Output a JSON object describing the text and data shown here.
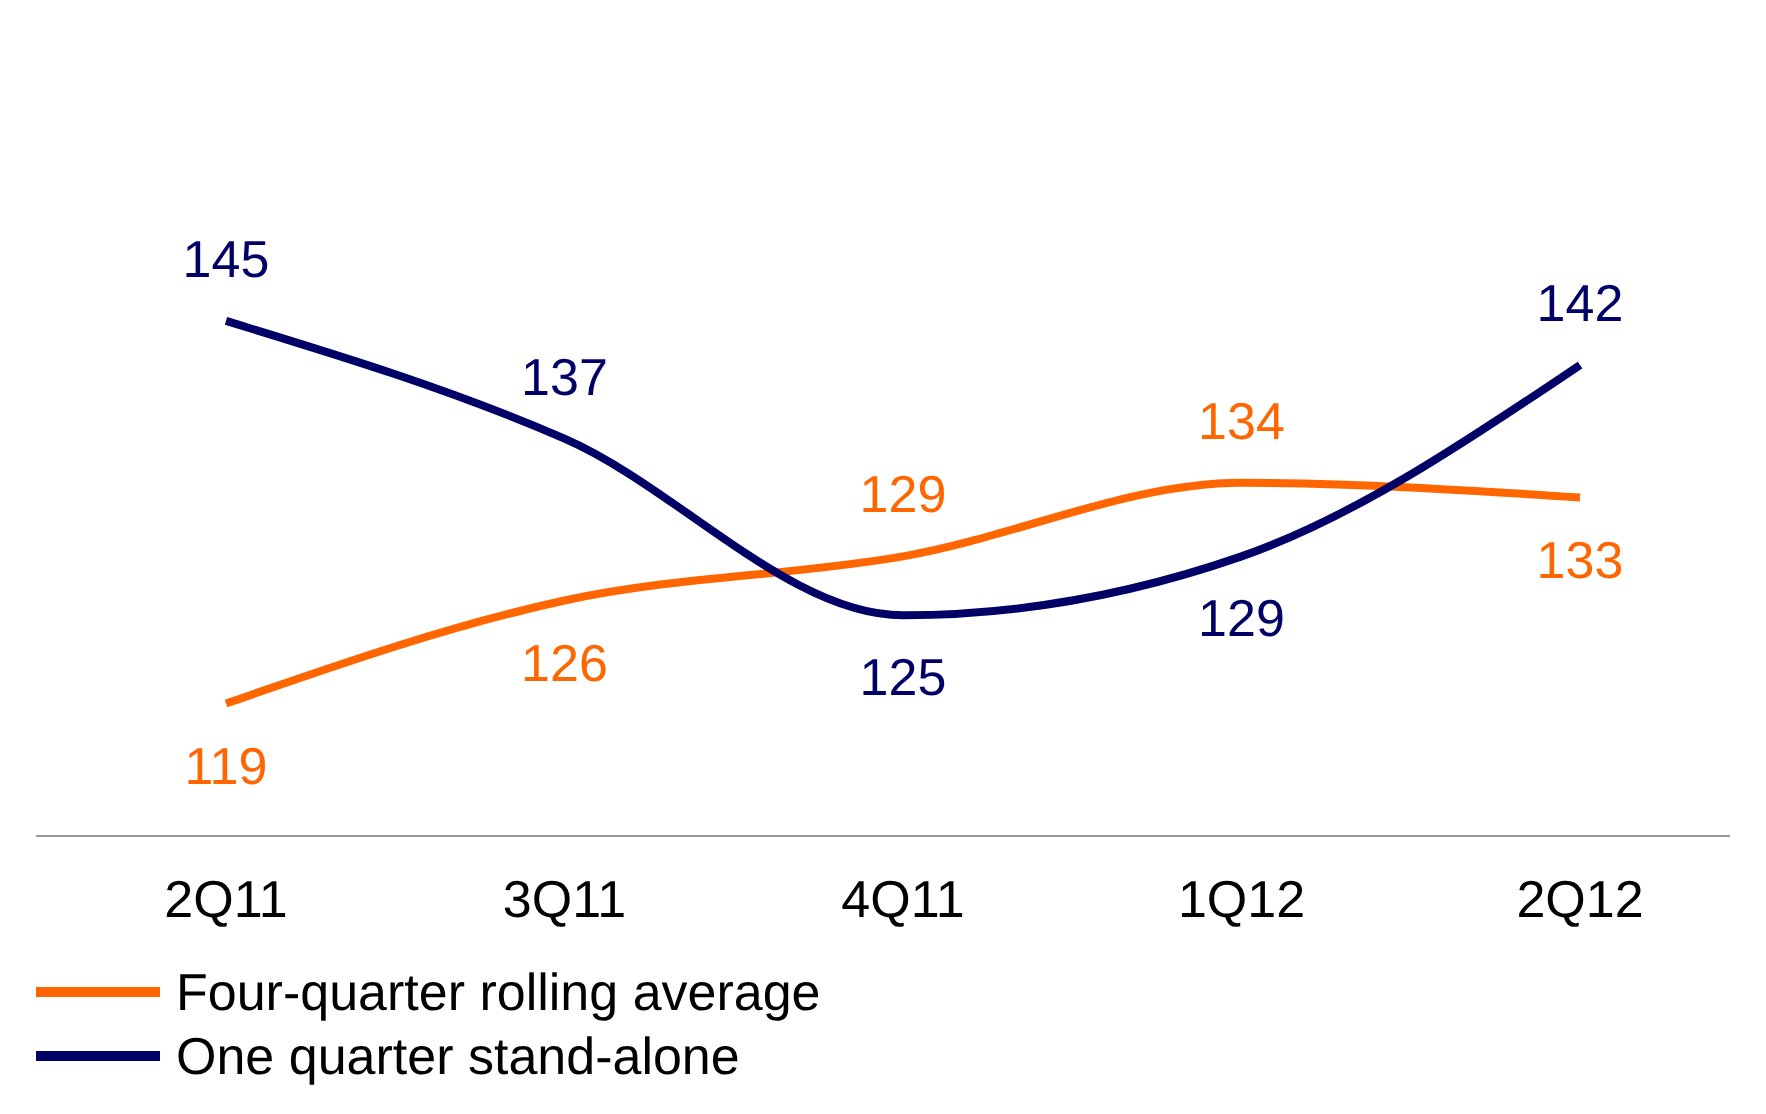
{
  "chart_data": {
    "type": "line",
    "categories": [
      "2Q11",
      "3Q11",
      "4Q11",
      "1Q12",
      "2Q12"
    ],
    "series": [
      {
        "name": "Four-quarter rolling average",
        "color": "#ff6600",
        "values": [
          119,
          126,
          129,
          134,
          133
        ]
      },
      {
        "name": "One quarter stand-alone",
        "color": "#000066",
        "values": [
          145,
          137,
          125,
          129,
          142
        ]
      }
    ],
    "data_labels": true,
    "legend": "bottom",
    "grid": false,
    "marker": "none",
    "line_style": "solid"
  }
}
